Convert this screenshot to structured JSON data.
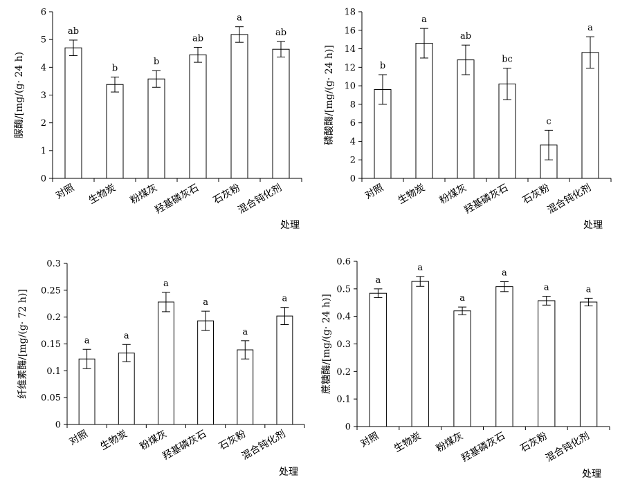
{
  "chart_data": [
    {
      "type": "bar",
      "categories": [
        "对照",
        "生物炭",
        "粉煤灰",
        "羟基磷灰石",
        "石灰粉",
        "混合钝化剂"
      ],
      "values": [
        4.7,
        3.38,
        3.58,
        4.45,
        5.18,
        4.65
      ],
      "errors": [
        0.28,
        0.27,
        0.3,
        0.27,
        0.28,
        0.28
      ],
      "significance": [
        "ab",
        "b",
        "b",
        "ab",
        "a",
        "ab"
      ],
      "ylabel": "脲酶/[mg/(g· 24 h)",
      "xlabel": "处理",
      "ylim": [
        0,
        6
      ],
      "yticks": [
        0,
        1,
        2,
        3,
        4,
        5,
        6
      ],
      "ytick_labels": [
        "0",
        "1",
        "2",
        "3",
        "4",
        "5",
        "6"
      ]
    },
    {
      "type": "bar",
      "categories": [
        "对照",
        "生物炭",
        "粉煤灰",
        "羟基磷灰石",
        "石灰粉",
        "混合钝化剂"
      ],
      "values": [
        9.6,
        14.6,
        12.8,
        10.2,
        3.6,
        13.6
      ],
      "errors": [
        1.6,
        1.6,
        1.6,
        1.7,
        1.6,
        1.7
      ],
      "significance": [
        "b",
        "a",
        "ab",
        "bc",
        "c",
        "a"
      ],
      "ylabel": "磷酸酶/[mg/(g· 24 h)]",
      "xlabel": "处理",
      "ylim": [
        0,
        18
      ],
      "yticks": [
        0,
        2,
        4,
        6,
        8,
        10,
        12,
        14,
        16,
        18
      ],
      "ytick_labels": [
        "0",
        "2",
        "4",
        "6",
        "8",
        "10",
        "12",
        "14",
        "16",
        "18"
      ]
    },
    {
      "type": "bar",
      "categories": [
        "对照",
        "生物炭",
        "粉煤灰",
        "羟基磷灰石",
        "石灰粉",
        "混合钝化剂"
      ],
      "values": [
        0.122,
        0.133,
        0.228,
        0.193,
        0.139,
        0.202
      ],
      "errors": [
        0.018,
        0.016,
        0.018,
        0.018,
        0.017,
        0.016
      ],
      "significance": [
        "a",
        "a",
        "a",
        "a",
        "a",
        "a"
      ],
      "ylabel": "纤维素酶/[mg/(g· 72 h)]",
      "xlabel": "处理",
      "ylim": [
        0,
        0.3
      ],
      "yticks": [
        0,
        0.05,
        0.1,
        0.15,
        0.2,
        0.25,
        0.3
      ],
      "ytick_labels": [
        "0",
        "0.05",
        "0.1",
        "0.15",
        "0.2",
        "0.25",
        "0.3"
      ]
    },
    {
      "type": "bar",
      "categories": [
        "对照",
        "生物炭",
        "粉煤灰",
        "羟基磷灰石",
        "石灰粉",
        "混合钝化剂"
      ],
      "values": [
        0.484,
        0.527,
        0.42,
        0.508,
        0.457,
        0.452
      ],
      "errors": [
        0.016,
        0.018,
        0.014,
        0.018,
        0.016,
        0.014
      ],
      "significance": [
        "a",
        "a",
        "a",
        "a",
        "a",
        "a"
      ],
      "ylabel": "蔗糖酶/[mg/(g· 24 h)]",
      "xlabel": "处理",
      "ylim": [
        0,
        0.6
      ],
      "yticks": [
        0,
        0.1,
        0.2,
        0.3,
        0.4,
        0.5,
        0.6
      ],
      "ytick_labels": [
        "0",
        "0.1",
        "0.2",
        "0.3",
        "0.4",
        "0.5",
        "0.6"
      ]
    }
  ]
}
